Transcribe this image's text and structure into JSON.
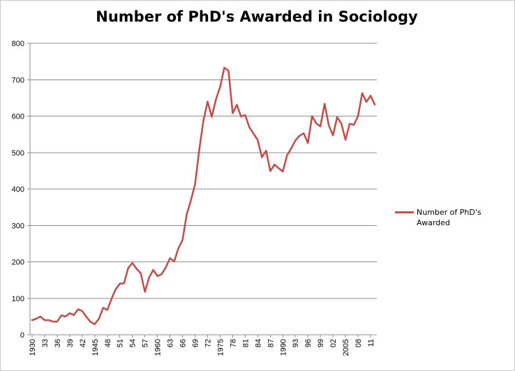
{
  "chart_data": {
    "type": "line",
    "title": "Number of PhD's Awarded in Sociology",
    "xlabel": "",
    "ylabel": "",
    "ylim": [
      0,
      800
    ],
    "yticks": [
      0,
      100,
      200,
      300,
      400,
      500,
      600,
      700,
      800
    ],
    "grid": true,
    "legend_position": "right",
    "series_color": "#c0504d",
    "series": [
      {
        "name": "Number of PhD's Awarded",
        "values": [
          40,
          44,
          50,
          40,
          40,
          36,
          36,
          53,
          50,
          59,
          54,
          70,
          65,
          49,
          35,
          29,
          44,
          74,
          68,
          98,
          125,
          140,
          141,
          183,
          197,
          181,
          169,
          118,
          157,
          178,
          161,
          166,
          185,
          210,
          201,
          237,
          260,
          330,
          369,
          413,
          507,
          587,
          640,
          598,
          646,
          680,
          733,
          725,
          608,
          631,
          599,
          603,
          569,
          552,
          534,
          487,
          505,
          449,
          467,
          457,
          448,
          492,
          511,
          533,
          546,
          553,
          526,
          600,
          580,
          572,
          634,
          575,
          547,
          597,
          580,
          535,
          579,
          576,
          600,
          663,
          639,
          656,
          632
        ]
      }
    ],
    "x_start_year": 1930,
    "x_tick_labels": [
      "1930",
      "33",
      "36",
      "39",
      "42",
      "1945",
      "48",
      "51",
      "54",
      "57",
      "1960",
      "63",
      "66",
      "69",
      "72",
      "1975",
      "78",
      "81",
      "84",
      "87",
      "1990",
      "93",
      "96",
      "99",
      "02",
      "2005",
      "08",
      "11"
    ]
  }
}
